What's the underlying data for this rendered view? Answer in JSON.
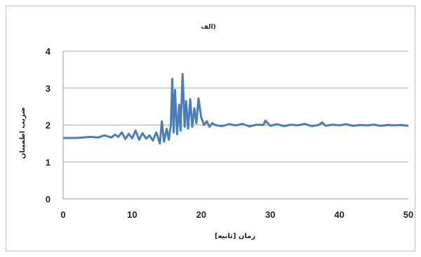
{
  "chart_data": {
    "type": "line",
    "title": "الف)",
    "xlabel": "زمان [ثانیه]",
    "ylabel": "ضریب اطمینان",
    "xlim": [
      0,
      50
    ],
    "ylim": [
      0,
      4
    ],
    "x_ticks": [
      "0",
      "10",
      "20",
      "30",
      "40",
      "50"
    ],
    "y_ticks": [
      "0",
      "1",
      "2",
      "3",
      "4"
    ],
    "grid": "horizontal",
    "legend": "none",
    "line_color": "#4a7ebb",
    "series": [
      {
        "x": [
          0,
          2,
          4,
          5,
          6,
          7,
          7.5,
          8,
          8.5,
          9,
          9.5,
          10,
          10.5,
          11,
          11.5,
          12,
          12.5,
          13,
          13.5,
          14,
          14.3,
          14.6,
          15,
          15.3,
          15.6,
          15.8,
          16,
          16.2,
          16.5,
          16.8,
          17,
          17.3,
          17.6,
          17.8,
          18.1,
          18.4,
          18.7,
          19,
          19.3,
          19.6,
          20,
          20.4,
          20.8,
          21.2,
          21.6,
          22,
          23,
          24,
          25,
          26,
          27,
          28,
          29,
          29.3,
          30,
          31,
          32,
          33,
          34,
          35,
          36,
          37,
          37.5,
          38,
          39,
          40,
          41,
          42,
          43,
          44,
          45,
          46,
          47,
          48,
          49,
          50
        ],
        "y": [
          1.65,
          1.65,
          1.68,
          1.66,
          1.72,
          1.66,
          1.74,
          1.68,
          1.8,
          1.62,
          1.76,
          1.64,
          1.85,
          1.6,
          1.78,
          1.63,
          1.72,
          1.58,
          1.8,
          1.5,
          2.1,
          1.55,
          1.9,
          1.6,
          2.0,
          3.25,
          1.8,
          2.95,
          1.75,
          2.55,
          1.85,
          3.38,
          1.95,
          2.65,
          1.9,
          2.7,
          1.95,
          2.45,
          2.05,
          2.72,
          2.2,
          2.0,
          2.1,
          1.95,
          2.05,
          2.0,
          1.97,
          2.02,
          1.99,
          2.03,
          1.96,
          2.01,
          2.0,
          2.12,
          1.98,
          2.02,
          1.97,
          2.01,
          1.99,
          2.03,
          1.97,
          2.0,
          2.07,
          1.98,
          2.01,
          1.99,
          2.02,
          1.98,
          2.0,
          1.99,
          2.01,
          1.98,
          2.0,
          1.99,
          2.0,
          1.98
        ]
      }
    ]
  }
}
